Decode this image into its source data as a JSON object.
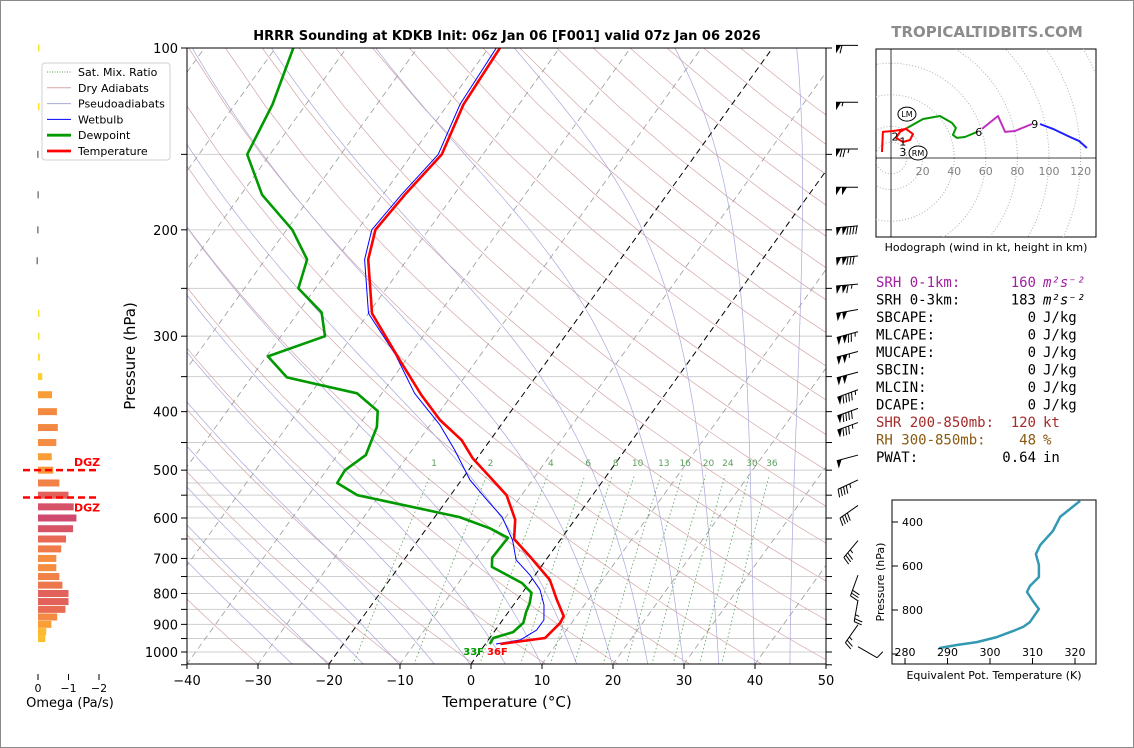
{
  "title": "HRRR Sounding at KDKB Init: 06z Jan 06 [F001] valid 07z Jan 06 2026",
  "brand": "TROPICALTIDBITS.COM",
  "legend": [
    {
      "label": "Sat. Mix. Ratio",
      "color": "#5aa05a",
      "style": "dotted"
    },
    {
      "label": "Dry Adiabats",
      "color": "#d4a6a6",
      "style": "solid"
    },
    {
      "label": "Pseudoadiabats",
      "color": "#a8a8dc",
      "style": "solid"
    },
    {
      "label": "Wetbulb",
      "color": "#0000ff",
      "style": "solid"
    },
    {
      "label": "Dewpoint",
      "color": "#009900",
      "style": "thick"
    },
    {
      "label": "Temperature",
      "color": "#ff0000",
      "style": "thick"
    }
  ],
  "skewt": {
    "xlabel": "Temperature (°C)",
    "ylabel": "Pressure (hPa)",
    "x_ticks": [
      "−40",
      "−30",
      "−20",
      "−10",
      "0",
      "10",
      "20",
      "30",
      "40",
      "50"
    ],
    "x_tick_values": [
      -40,
      -30,
      -20,
      -10,
      0,
      10,
      20,
      30,
      40,
      50
    ],
    "y_ticks": [
      "100",
      "200",
      "300",
      "400",
      "500",
      "600",
      "700",
      "800",
      "900",
      "1000"
    ],
    "y_tick_values": [
      100,
      200,
      300,
      400,
      500,
      600,
      700,
      800,
      900,
      1000
    ],
    "mixing_ratio_labels": [
      "1",
      "2",
      "4",
      "6",
      "8",
      "10",
      "13",
      "16",
      "20",
      "24",
      "30",
      "36"
    ],
    "mixing_ratio_values": [
      1,
      2,
      4,
      6,
      8,
      10,
      13,
      16,
      20,
      24,
      30,
      36
    ],
    "surface_dewpoint_label": "33F",
    "surface_temp_label": "36F"
  },
  "stats": [
    {
      "label": "SRH 0-1km:",
      "value": "160",
      "unit": "m²s⁻²",
      "color": "#a020a0"
    },
    {
      "label": "SRH 0-3km:",
      "value": "183",
      "unit": "m²s⁻²",
      "color": "#000000"
    },
    {
      "label": "SBCAPE:",
      "value": "0",
      "unit": "J/kg",
      "color": "#000000"
    },
    {
      "label": "MLCAPE:",
      "value": "0",
      "unit": "J/kg",
      "color": "#000000"
    },
    {
      "label": "MUCAPE:",
      "value": "0",
      "unit": "J/kg",
      "color": "#000000"
    },
    {
      "label": "SBCIN:",
      "value": "0",
      "unit": "J/kg",
      "color": "#000000"
    },
    {
      "label": "MLCIN:",
      "value": "0",
      "unit": "J/kg",
      "color": "#000000"
    },
    {
      "label": "DCAPE:",
      "value": "0",
      "unit": "J/kg",
      "color": "#000000"
    },
    {
      "label": "SHR 200-850mb:",
      "value": "120",
      "unit": "kt",
      "color": "#a52a2a"
    },
    {
      "label": "RH 300-850mb:",
      "value": "48",
      "unit": "%",
      "color": "#8b5a10"
    },
    {
      "label": "PWAT:",
      "value": "0.64",
      "unit": "in",
      "color": "#000000"
    }
  ],
  "hodograph": {
    "caption": "Hodograph (wind in kt, height in km)",
    "ring_labels": [
      "20",
      "40",
      "60",
      "80",
      "100",
      "120"
    ],
    "ring_values": [
      20,
      40,
      60,
      80,
      100,
      120
    ]
  },
  "thetae": {
    "xlabel": "Equivalent Pot. Temperature (K)",
    "ylabel": "Pressure (hPa)",
    "x_ticks": [
      "280",
      "290",
      "300",
      "310",
      "320"
    ],
    "x_tick_values": [
      280,
      290,
      300,
      310,
      320
    ],
    "y_ticks": [
      "400",
      "600",
      "800"
    ],
    "y_tick_values": [
      400,
      600,
      800
    ]
  },
  "omega": {
    "xlabel": "Omega (Pa/s)",
    "x_ticks": [
      "0",
      "−1",
      "−2"
    ],
    "x_tick_values": [
      0,
      -1,
      -2
    ],
    "dgz_label": "DGZ",
    "dgz_top_hpa": 500,
    "dgz_bottom_hpa": 555
  },
  "chart_data": [
    {
      "type": "line",
      "name": "skew-t",
      "title": "HRRR Sounding at KDKB Init: 06z Jan 06 [F001] valid 07z Jan 06 2026",
      "xlabel": "Temperature (°C)",
      "ylabel": "Pressure (hPa)",
      "xlim": [
        -40,
        50
      ],
      "ylim": [
        1050,
        100
      ],
      "yscale": "log",
      "skewed": true,
      "series": [
        {
          "name": "Temperature",
          "color": "#ff0000",
          "pressure": [
            100,
            124,
            150,
            175,
            200,
            224,
            275,
            329,
            376,
            413,
            446,
            478,
            519,
            550,
            604,
            650,
            696,
            760,
            820,
            872,
            895,
            948,
            970
          ],
          "values": [
            -58.4,
            -57.8,
            -55.8,
            -56.9,
            -57.5,
            -55.5,
            -49.5,
            -40.8,
            -34.2,
            -29.1,
            -24,
            -20.6,
            -15.6,
            -12.1,
            -8.4,
            -6.6,
            -2.5,
            2.6,
            5.6,
            8.2,
            8.4,
            7.8,
            2.1
          ]
        },
        {
          "name": "Dewpoint",
          "color": "#009900",
          "pressure": [
            100,
            124,
            150,
            175,
            200,
            224,
            250,
            274,
            300,
            324,
            351,
            373,
            399,
            424,
            472,
            500,
            525,
            550,
            598,
            624,
            647,
            698,
            723,
            769,
            798,
            830,
            859,
            895,
            927,
            948,
            970
          ],
          "values": [
            -87.5,
            -84.7,
            -83.2,
            -77,
            -69.2,
            -64.1,
            -62.4,
            -56.7,
            -53.8,
            -59.8,
            -55,
            -43.5,
            -38.8,
            -37.3,
            -36,
            -37.4,
            -37.2,
            -33.1,
            -16.5,
            -11.1,
            -7.6,
            -7.8,
            -6.9,
            -1,
            1.3,
            2.1,
            2.5,
            3.2,
            2.7,
            0.5,
            0.6
          ]
        },
        {
          "name": "Wetbulb",
          "color": "#0000ff",
          "pressure": [
            100,
            124,
            150,
            175,
            200,
            224,
            275,
            322,
            373,
            421,
            463,
            519,
            560,
            598,
            653,
            704,
            746,
            789,
            836,
            885,
            920,
            955,
            970
          ],
          "values": [
            -58.9,
            -58.3,
            -56.3,
            -57.4,
            -58,
            -56,
            -50,
            -42,
            -35.4,
            -28.6,
            -24,
            -18.8,
            -14.4,
            -10.5,
            -6.7,
            -4.2,
            -0.7,
            2.2,
            4.3,
            5.8,
            5.8,
            4.5,
            1.5
          ]
        }
      ],
      "wind_barbs": {
        "pressure": [
          99,
          123,
          147,
          170,
          197,
          221,
          246,
          271,
          295,
          318,
          344,
          368,
          395,
          417,
          472,
          519,
          572,
          654,
          746,
          820,
          901,
          980
        ],
        "direction_deg": [
          270,
          270,
          270,
          270,
          265,
          265,
          265,
          260,
          255,
          255,
          255,
          250,
          250,
          250,
          255,
          245,
          235,
          220,
          200,
          190,
          215,
          120
        ],
        "speed_kt": [
          60,
          55,
          75,
          100,
          140,
          130,
          115,
          100,
          125,
          105,
          100,
          95,
          90,
          85,
          50,
          45,
          40,
          35,
          30,
          25,
          25,
          10
        ]
      }
    },
    {
      "type": "line",
      "name": "hodograph",
      "title": "Hodograph (wind in kt, height in km)",
      "units": "kt",
      "segments": [
        {
          "range_km": "0-3",
          "color": "#ff0000",
          "u": [
            -5.7,
            -5.1,
            1.3,
            5.7,
            9.5,
            13.9,
            12,
            7.6,
            3.2,
            5.7,
            10.1
          ],
          "v": [
            3.8,
            16.5,
            17.1,
            17.7,
            18.4,
            15.2,
            11.4,
            10.1,
            12.7,
            16.5,
            19
          ]
        },
        {
          "range_km": "3-6",
          "color": "#009900",
          "u": [
            10.1,
            20.3,
            31,
            38.6,
            41.1,
            39.2,
            41.8,
            46.8,
            54.4
          ],
          "v": [
            19,
            24.7,
            26.6,
            22.2,
            19,
            14.6,
            12.7,
            13.3,
            16.5
          ]
        },
        {
          "range_km": "6-9",
          "color": "#c030c0",
          "u": [
            57.6,
            67.7,
            72.2,
            78.5,
            89.2
          ],
          "v": [
            18.4,
            26.6,
            16.5,
            17.1,
            21.5
          ]
        },
        {
          "range_km": "9-12",
          "color": "#2020ff",
          "u": [
            94.3,
            102.5,
            113.3,
            119,
            124
          ],
          "v": [
            21.5,
            18.4,
            13.3,
            10.8,
            6.3
          ]
        }
      ],
      "height_labels": [
        {
          "text": "1",
          "u": 7.5,
          "v": 10.5
        },
        {
          "text": "2",
          "u": 2.5,
          "v": 13.5
        },
        {
          "text": "3",
          "u": 7.5,
          "v": 16.5
        },
        {
          "text": "6",
          "u": 55.5,
          "v": 16.5
        },
        {
          "text": "9",
          "u": 91,
          "v": 21.5
        }
      ],
      "storm_motion": [
        {
          "text": "LM",
          "u": 10.1,
          "v": 27.8
        },
        {
          "text": "RM",
          "u": 17.1,
          "v": 3.2
        }
      ]
    },
    {
      "type": "line",
      "name": "equivalent-potential-temperature",
      "xlabel": "Equivalent Pot. Temperature (K)",
      "ylabel": "Pressure (hPa)",
      "xlim": [
        277,
        325
      ],
      "ylim": [
        1045,
        300
      ],
      "color": "#3399b3",
      "pressure": [
        304,
        377,
        441,
        505,
        546,
        596,
        650,
        691,
        718,
        759,
        796,
        855,
        877,
        896,
        923,
        946,
        959,
        973
      ],
      "values": [
        321.2,
        316.5,
        314.8,
        311.8,
        310.8,
        311.5,
        311.5,
        309.4,
        308.7,
        310.1,
        311.5,
        309.4,
        307.8,
        305.4,
        301.6,
        296.9,
        292.2,
        288
      ]
    },
    {
      "type": "bar",
      "name": "omega",
      "xlabel": "Omega (Pa/s)",
      "xlim": [
        0.5,
        -2.0
      ],
      "pressure": [
        100,
        125,
        150,
        175,
        200,
        225,
        275,
        300,
        325,
        350,
        375,
        400,
        425,
        450,
        475,
        500,
        525,
        550,
        575,
        600,
        625,
        650,
        675,
        700,
        725,
        750,
        775,
        800,
        825,
        850,
        875,
        900,
        925,
        950
      ],
      "values": [
        -0.02,
        -0.02,
        0.03,
        0.02,
        0.03,
        0.05,
        -0.02,
        -0.02,
        -0.06,
        -0.14,
        -0.46,
        -0.62,
        -0.65,
        -0.6,
        -0.45,
        -0.5,
        -0.7,
        -1.0,
        -1.17,
        -1.26,
        -1.15,
        -0.92,
        -0.76,
        -0.6,
        -0.6,
        -0.7,
        -0.8,
        -1.0,
        -1.0,
        -0.9,
        -0.63,
        -0.44,
        -0.27,
        -0.24
      ]
    }
  ]
}
